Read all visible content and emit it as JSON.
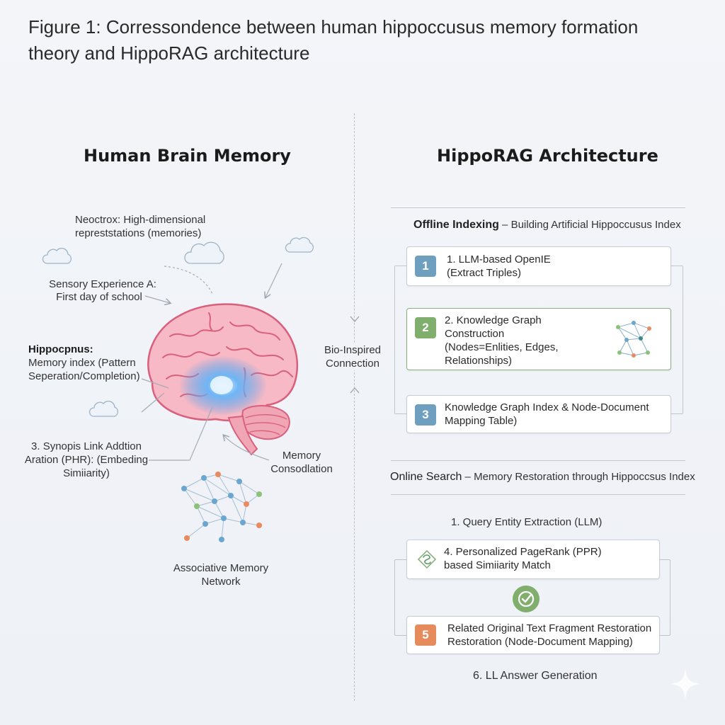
{
  "figure_caption": "Figure 1: Corressondence between human hippoccusus memory formation theory and HippoRAG architecture",
  "left": {
    "title": "Human Brain Memory",
    "neocortex_label": "Neoctrox: High-dimensional repreststations (memories)",
    "sensory_label_line1": "Sensory Experience A:",
    "sensory_label_line2": "First day of school",
    "hippocampus_title": "Hippocpnus:",
    "hippocampus_desc": "Memory index (Pattern Seperation/Completion)",
    "synapse_label": "3. Synopis Link Addtion Aration (PHR): (Embeding Simiiarity)",
    "consolidation_label": "Memory Consodlation",
    "network_label": "Associative Memory Network"
  },
  "connection_label": "Bio-Inspired Connection",
  "right": {
    "title": "HippoRAG Architecture",
    "offline": {
      "title": "Offline Indexing",
      "subtitle": " – Building Artificial Hippoccusus Index",
      "steps": [
        {
          "badge": "1",
          "text": "1. LLM-based OpenIE (Extract Triples)"
        },
        {
          "badge": "2",
          "text": "2. Knowledge Graph Construction (Nodes=Enlities, Edges, Relationships)"
        },
        {
          "badge": "3",
          "text": "Knowledge Graph Index & Node-Document Mapping Table)"
        }
      ]
    },
    "online": {
      "title": "Online Search",
      "subtitle": " – Memory Restoration through Hippoccsus Index",
      "step1": "1. Query Entity Extraction (LLM)",
      "step4": "4. Personalized PageRank (PPR) based Simiiarity Match",
      "step5_badge": "5",
      "step5": "Related Original Text Fragment Restoration Restoration (Node-Document Mapping)",
      "step6": "6. LL Answer Generation"
    }
  },
  "colors": {
    "badge_blue": "#6f9fbf",
    "badge_green": "#7fae6d",
    "badge_orange": "#e58b5c",
    "brain_pink": "#f2a7b5",
    "brain_outline": "#d9607c",
    "hippocampus_glow": "#3f9cf0",
    "node_blue": "#6aa6cf",
    "node_green": "#8cc17a",
    "node_orange": "#ea8a5f"
  },
  "icons": [
    "cloud-icon",
    "graph-icon",
    "pagerank-icon",
    "check-icon",
    "sparkle-icon"
  ]
}
